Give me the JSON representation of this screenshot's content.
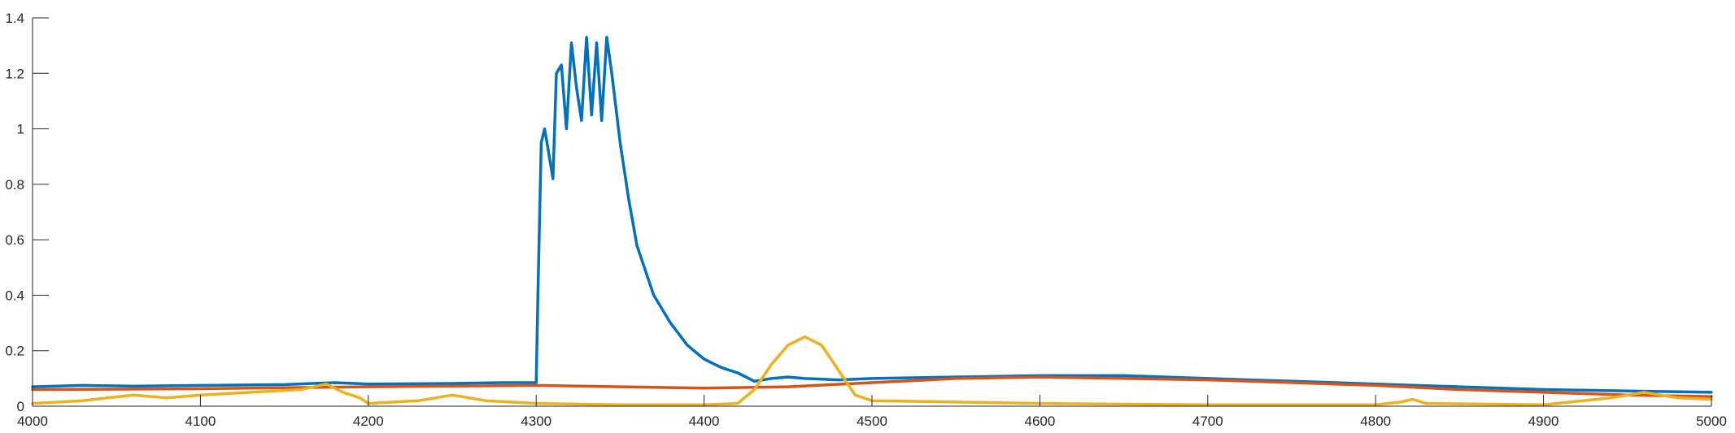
{
  "chart_data": {
    "type": "line",
    "title": "",
    "xlabel": "",
    "ylabel": "",
    "xlim": [
      4000,
      5000
    ],
    "ylim": [
      0,
      1.4
    ],
    "xticks": [
      4000,
      4100,
      4200,
      4300,
      4400,
      4500,
      4600,
      4700,
      4800,
      4900,
      5000
    ],
    "yticks": [
      0,
      0.2,
      0.4,
      0.6,
      0.8,
      1,
      1.2,
      1.4
    ],
    "xtick_labels": [
      "4000",
      "4100",
      "4200",
      "4300",
      "4400",
      "4500",
      "4600",
      "4700",
      "4800",
      "4900",
      "5000"
    ],
    "ytick_labels": [
      "0",
      "0.2",
      "0.4",
      "0.6",
      "0.8",
      "1",
      "1.2",
      "1.4"
    ],
    "grid": false,
    "legend": "none",
    "series": [
      {
        "color": "#0072BD",
        "x": [
          4000,
          4030,
          4060,
          4100,
          4150,
          4180,
          4200,
          4250,
          4280,
          4300,
          4301,
          4303,
          4305,
          4307,
          4310,
          4312,
          4315,
          4318,
          4321,
          4324,
          4327,
          4330,
          4333,
          4336,
          4339,
          4342,
          4345,
          4348,
          4350,
          4355,
          4360,
          4370,
          4380,
          4390,
          4400,
          4410,
          4420,
          4430,
          4440,
          4450,
          4460,
          4480,
          4500,
          4550,
          4600,
          4650,
          4700,
          4750,
          4800,
          4850,
          4900,
          4950,
          5000
        ],
        "y": [
          0.07,
          0.075,
          0.072,
          0.075,
          0.078,
          0.085,
          0.08,
          0.082,
          0.085,
          0.085,
          0.4,
          0.95,
          1.0,
          0.93,
          0.82,
          1.2,
          1.23,
          1.0,
          1.31,
          1.15,
          1.03,
          1.33,
          1.05,
          1.31,
          1.03,
          1.33,
          1.2,
          1.05,
          0.95,
          0.75,
          0.58,
          0.4,
          0.3,
          0.22,
          0.17,
          0.14,
          0.12,
          0.09,
          0.1,
          0.105,
          0.1,
          0.095,
          0.1,
          0.105,
          0.11,
          0.11,
          0.1,
          0.09,
          0.08,
          0.07,
          0.06,
          0.055,
          0.05
        ]
      },
      {
        "color": "#D95319",
        "x": [
          4000,
          4100,
          4200,
          4300,
          4400,
          4450,
          4500,
          4550,
          4600,
          4650,
          4700,
          4750,
          4800,
          4850,
          4900,
          4950,
          5000
        ],
        "y": [
          0.06,
          0.063,
          0.07,
          0.075,
          0.065,
          0.07,
          0.085,
          0.1,
          0.105,
          0.1,
          0.095,
          0.085,
          0.075,
          0.06,
          0.05,
          0.04,
          0.035
        ]
      },
      {
        "color": "#EDB120",
        "x": [
          4000,
          4030,
          4060,
          4080,
          4100,
          4130,
          4160,
          4175,
          4185,
          4195,
          4200,
          4230,
          4250,
          4270,
          4300,
          4350,
          4400,
          4420,
          4430,
          4440,
          4450,
          4460,
          4470,
          4480,
          4490,
          4500,
          4550,
          4600,
          4700,
          4800,
          4815,
          4822,
          4830,
          4900,
          4940,
          4960,
          4980,
          5000
        ],
        "y": [
          0.01,
          0.02,
          0.04,
          0.03,
          0.04,
          0.05,
          0.06,
          0.08,
          0.05,
          0.03,
          0.01,
          0.02,
          0.04,
          0.02,
          0.01,
          0.005,
          0.005,
          0.01,
          0.06,
          0.15,
          0.22,
          0.25,
          0.22,
          0.13,
          0.04,
          0.02,
          0.015,
          0.01,
          0.005,
          0.005,
          0.015,
          0.025,
          0.01,
          0.005,
          0.03,
          0.05,
          0.03,
          0.025
        ]
      }
    ]
  }
}
